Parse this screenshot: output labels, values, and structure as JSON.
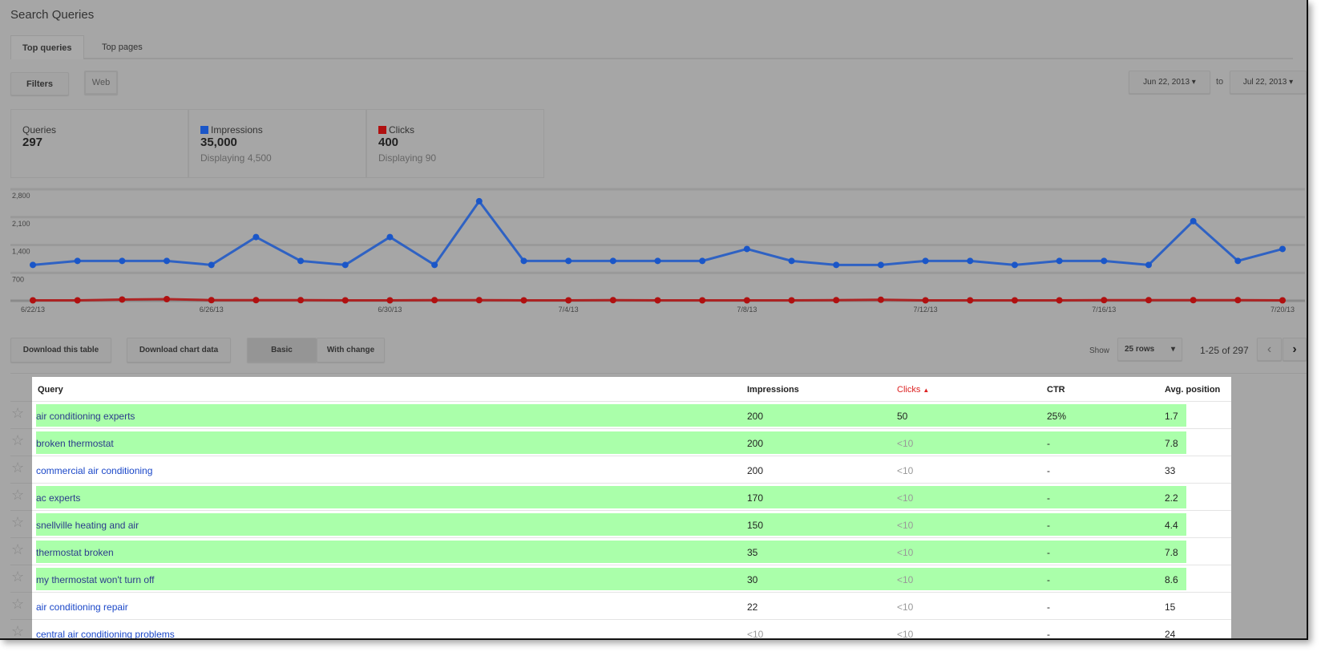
{
  "title": "Search Queries",
  "tabs": [
    "Top queries",
    "Top pages"
  ],
  "filters_label": "Filters",
  "web_label": "Web",
  "date_from": "Jun 22, 2013",
  "date_to_word": "to",
  "date_to": "Jul 22, 2013",
  "stats": {
    "queries": {
      "label": "Queries",
      "value": "297"
    },
    "impressions": {
      "label": "Impressions",
      "value": "35,000",
      "sub": "Displaying 4,500"
    },
    "clicks": {
      "label": "Clicks",
      "value": "400",
      "sub": "Displaying 90"
    }
  },
  "colors": {
    "impressions": "#1a56c8",
    "clicks": "#b01010",
    "highlight": "#aaffaa"
  },
  "chart_data": {
    "type": "line",
    "x": [
      "6/22/13",
      "6/23/13",
      "6/24/13",
      "6/25/13",
      "6/26/13",
      "6/27/13",
      "6/28/13",
      "6/29/13",
      "6/30/13",
      "7/1/13",
      "7/2/13",
      "7/3/13",
      "7/4/13",
      "7/5/13",
      "7/6/13",
      "7/7/13",
      "7/8/13",
      "7/9/13",
      "7/10/13",
      "7/11/13",
      "7/12/13",
      "7/13/13",
      "7/14/13",
      "7/15/13",
      "7/16/13",
      "7/17/13",
      "7/18/13",
      "7/19/13",
      "7/20/13"
    ],
    "x_tick_labels": [
      "6/22/13",
      "6/26/13",
      "6/30/13",
      "7/4/13",
      "7/8/13",
      "7/12/13",
      "7/16/13",
      "7/20/13"
    ],
    "y_tick_labels": [
      "2,800",
      "2,100",
      "1,400",
      "700"
    ],
    "ylim": [
      0,
      2800
    ],
    "grid": true,
    "series": [
      {
        "name": "Impressions",
        "color": "#1a56c8",
        "values": [
          900,
          1000,
          1000,
          1000,
          900,
          1600,
          1000,
          900,
          1600,
          900,
          2500,
          1000,
          1000,
          1000,
          1000,
          1000,
          1300,
          1000,
          900,
          900,
          1000,
          1000,
          900,
          1000,
          1000,
          900,
          2000,
          1000,
          1300
        ]
      },
      {
        "name": "Clicks",
        "color": "#b01010",
        "values": [
          10,
          10,
          30,
          40,
          15,
          15,
          15,
          10,
          10,
          15,
          15,
          10,
          10,
          15,
          10,
          10,
          10,
          10,
          15,
          25,
          10,
          10,
          10,
          10,
          15,
          15,
          15,
          15,
          10
        ]
      }
    ]
  },
  "toolbar": {
    "download_table": "Download this table",
    "download_chart": "Download chart data",
    "basic": "Basic",
    "with_change": "With change",
    "show": "Show",
    "rows": "25 rows",
    "pager": "1-25 of 297"
  },
  "table": {
    "headers": [
      "Query",
      "Impressions",
      "Clicks",
      "CTR",
      "Avg. position"
    ],
    "rows": [
      {
        "q": "air conditioning experts",
        "imp": "200",
        "clicks": "50",
        "ctr": "25%",
        "pos": "1.7",
        "hl": true
      },
      {
        "q": "broken thermostat",
        "imp": "200",
        "clicks": "<10",
        "ctr": "-",
        "pos": "7.8",
        "hl": true
      },
      {
        "q": "commercial air conditioning",
        "imp": "200",
        "clicks": "<10",
        "ctr": "-",
        "pos": "33",
        "hl": false
      },
      {
        "q": "ac experts",
        "imp": "170",
        "clicks": "<10",
        "ctr": "-",
        "pos": "2.2",
        "hl": true
      },
      {
        "q": "snellville heating and air",
        "imp": "150",
        "clicks": "<10",
        "ctr": "-",
        "pos": "4.4",
        "hl": true
      },
      {
        "q": "thermostat broken",
        "imp": "35",
        "clicks": "<10",
        "ctr": "-",
        "pos": "7.8",
        "hl": true
      },
      {
        "q": "my thermostat won't turn off",
        "imp": "30",
        "clicks": "<10",
        "ctr": "-",
        "pos": "8.6",
        "hl": true
      },
      {
        "q": "air conditioning repair",
        "imp": "22",
        "clicks": "<10",
        "ctr": "-",
        "pos": "15",
        "hl": false
      },
      {
        "q": "central air conditioning problems",
        "imp": "<10",
        "clicks": "<10",
        "ctr": "-",
        "pos": "24",
        "hl": false
      }
    ]
  }
}
